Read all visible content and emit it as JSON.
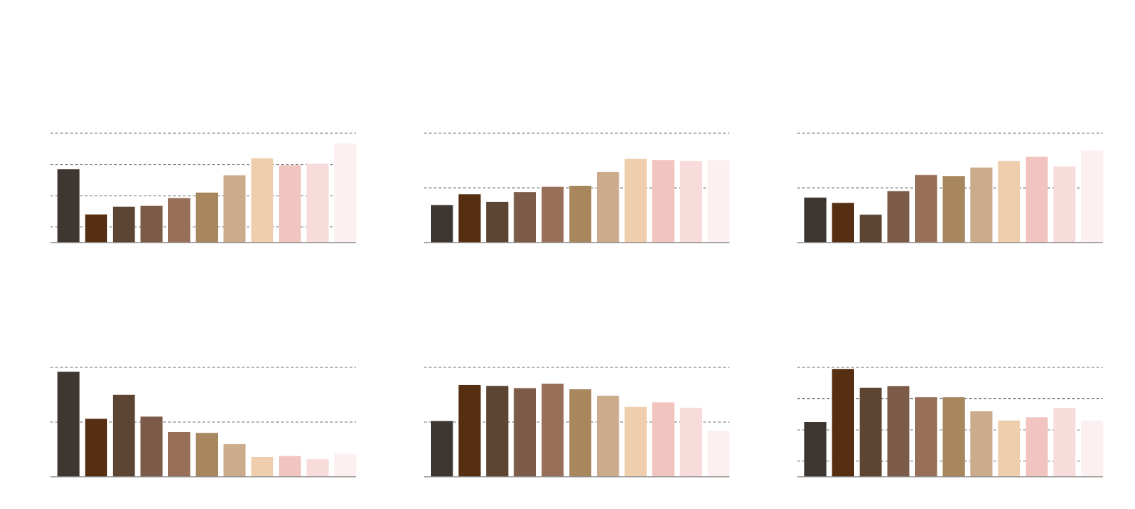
{
  "palette": [
    "#3e3631",
    "#562e12",
    "#5d4533",
    "#7c5b48",
    "#986f58",
    "#a8875f",
    "#cbab8c",
    "#efceae",
    "#f2c4c0",
    "#f8dcdb",
    "#fdf0f0"
  ],
  "chart_data": [
    {
      "type": "bar",
      "title": "",
      "xlabel": "",
      "ylabel": "",
      "categories": [
        "",
        "",
        "",
        "",
        "",
        "",
        "",
        "",
        "",
        "",
        ""
      ],
      "values": [
        47,
        18,
        23,
        23.5,
        28.5,
        32,
        43,
        54,
        49.5,
        50.5,
        63.5
      ],
      "ylim": [
        0,
        70
      ],
      "gridlines": [
        10,
        30,
        50,
        70
      ],
      "grid": true
    },
    {
      "type": "bar",
      "title": "",
      "xlabel": "",
      "ylabel": "",
      "categories": [
        "",
        "",
        "",
        "",
        "",
        "",
        "",
        "",
        "",
        "",
        ""
      ],
      "values": [
        17.5,
        22.5,
        19,
        23.5,
        26,
        26.5,
        33,
        39,
        38.5,
        38,
        38.5
      ],
      "ylim": [
        0,
        51
      ],
      "gridlines": [
        25.5,
        51
      ],
      "grid": true
    },
    {
      "type": "bar",
      "title": "",
      "xlabel": "",
      "ylabel": "",
      "categories": [
        "",
        "",
        "",
        "",
        "",
        "",
        "",
        "",
        "",
        "",
        ""
      ],
      "values": [
        21,
        18.5,
        13,
        24,
        31.5,
        31,
        35,
        38,
        40,
        35.5,
        43
      ],
      "ylim": [
        0,
        51
      ],
      "gridlines": [
        25.5,
        51
      ],
      "grid": true
    },
    {
      "type": "bar",
      "title": "",
      "xlabel": "",
      "ylabel": "",
      "categories": [
        "",
        "",
        "",
        "",
        "",
        "",
        "",
        "",
        "",
        "",
        ""
      ],
      "values": [
        48,
        26.5,
        37.5,
        27.5,
        20.5,
        20,
        15,
        9,
        9.5,
        8,
        10.5
      ],
      "ylim": [
        0,
        50
      ],
      "gridlines": [
        25,
        50
      ],
      "grid": true
    },
    {
      "type": "bar",
      "title": "",
      "xlabel": "",
      "ylabel": "",
      "categories": [
        "",
        "",
        "",
        "",
        "",
        "",
        "",
        "",
        "",
        "",
        ""
      ],
      "values": [
        25.5,
        42,
        41.5,
        40.5,
        42.5,
        40,
        37,
        32,
        34,
        31.5,
        21
      ],
      "ylim": [
        0,
        50
      ],
      "gridlines": [
        25,
        50
      ],
      "grid": true
    },
    {
      "type": "bar",
      "title": "",
      "xlabel": "",
      "ylabel": "",
      "categories": [
        "",
        "",
        "",
        "",
        "",
        "",
        "",
        "",
        "",
        "",
        ""
      ],
      "values": [
        17.5,
        34.5,
        28.5,
        29,
        25.5,
        25.5,
        21,
        18,
        19,
        22,
        18
      ],
      "ylim": [
        0,
        35
      ],
      "gridlines": [
        5,
        15,
        25,
        35
      ],
      "grid": true
    }
  ]
}
